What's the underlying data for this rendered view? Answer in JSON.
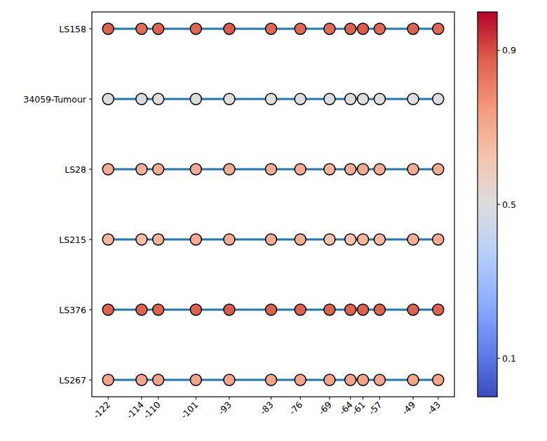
{
  "chart_data": {
    "type": "dotplot",
    "categories": [
      "LS158",
      "34059-Tumour",
      "LS28",
      "LS215",
      "LS376",
      "LS267"
    ],
    "x": [
      -122,
      -114,
      -110,
      -101,
      -93,
      -83,
      -76,
      -69,
      -64,
      -61,
      -57,
      -49,
      -43
    ],
    "xlim": [
      -125.9,
      -39.1
    ],
    "xticks": [
      -122,
      -114,
      -110,
      -101,
      -93,
      -83,
      -76,
      -69,
      -64,
      -61,
      -57,
      -49,
      -43
    ],
    "color": "#1f77b4",
    "cells": [
      [
        0.87,
        0.85,
        0.87,
        0.86,
        0.88,
        0.86,
        0.86,
        0.85,
        0.87,
        0.88,
        0.86,
        0.87,
        0.86
      ],
      [
        0.5,
        0.48,
        0.5,
        0.5,
        0.5,
        0.5,
        0.5,
        0.49,
        0.5,
        0.51,
        0.5,
        0.5,
        0.5
      ],
      [
        0.7,
        0.68,
        0.7,
        0.7,
        0.7,
        0.7,
        0.7,
        0.68,
        0.7,
        0.7,
        0.7,
        0.7,
        0.7
      ],
      [
        0.67,
        0.64,
        0.67,
        0.7,
        0.7,
        0.7,
        0.7,
        0.63,
        0.64,
        0.67,
        0.66,
        0.69,
        0.7
      ],
      [
        0.87,
        0.87,
        0.87,
        0.87,
        0.88,
        0.87,
        0.87,
        0.87,
        0.87,
        0.87,
        0.87,
        0.87,
        0.87
      ],
      [
        0.72,
        0.72,
        0.72,
        0.72,
        0.72,
        0.72,
        0.72,
        0.72,
        0.72,
        0.72,
        0.72,
        0.72,
        0.72
      ]
    ],
    "colorbar_range": [
      0,
      1
    ],
    "colorbar_ticks": [
      0.1,
      0.5,
      0.9
    ]
  }
}
